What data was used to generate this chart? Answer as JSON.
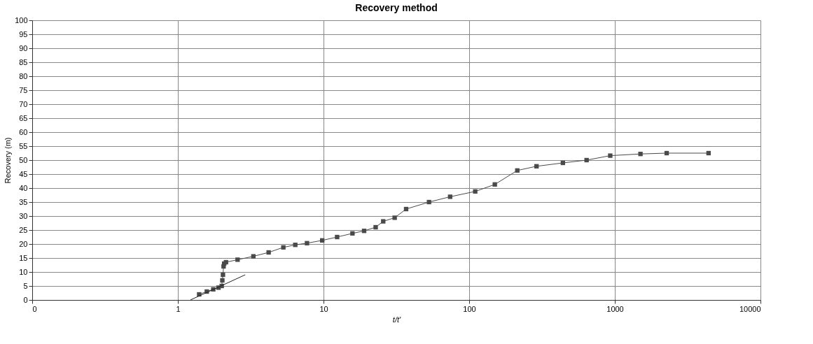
{
  "chart_data": {
    "type": "line",
    "title": "Recovery method",
    "xlabel": "t/t'",
    "ylabel": "Recovery (m)",
    "log": "x",
    "xlim": [
      0.1,
      10000
    ],
    "xticks": [
      {
        "value": 0.1,
        "label": "0"
      },
      1,
      10,
      100,
      1000,
      10000
    ],
    "ylim": [
      0,
      100
    ],
    "yticks": [
      0,
      5,
      10,
      15,
      20,
      25,
      30,
      35,
      40,
      45,
      50,
      55,
      60,
      65,
      70,
      75,
      80,
      85,
      90,
      95,
      100
    ],
    "grid": true,
    "marker": "square",
    "line_style": "solid",
    "series": [
      {
        "color": "#4a4a4a",
        "x": [
          1.4,
          1.58,
          1.75,
          1.9,
          2.0,
          2.02,
          2.04,
          2.06,
          2.08,
          2.14,
          2.57,
          3.3,
          4.2,
          5.3,
          6.4,
          7.7,
          9.8,
          12.4,
          15.8,
          19,
          22.8,
          25.7,
          30.8,
          36.9,
          53,
          74,
          110,
          150,
          214,
          290,
          440,
          640,
          930,
          1500,
          2270,
          4400
        ],
        "values": [
          2,
          3,
          3.8,
          4.4,
          5,
          7,
          9,
          12,
          13,
          13.5,
          14.4,
          15.6,
          17,
          18.8,
          19.7,
          20.3,
          21.3,
          22.5,
          23.8,
          24.7,
          26,
          28.1,
          29.4,
          32.5,
          35,
          36.9,
          38.8,
          41.3,
          46.3,
          47.8,
          49,
          50,
          51.6,
          52.2,
          52.5,
          52.5
        ]
      },
      {
        "type": "line",
        "marker": "none",
        "color": "#222222",
        "x": [
          1.22,
          2.9
        ],
        "values": [
          0,
          9
        ]
      }
    ]
  }
}
